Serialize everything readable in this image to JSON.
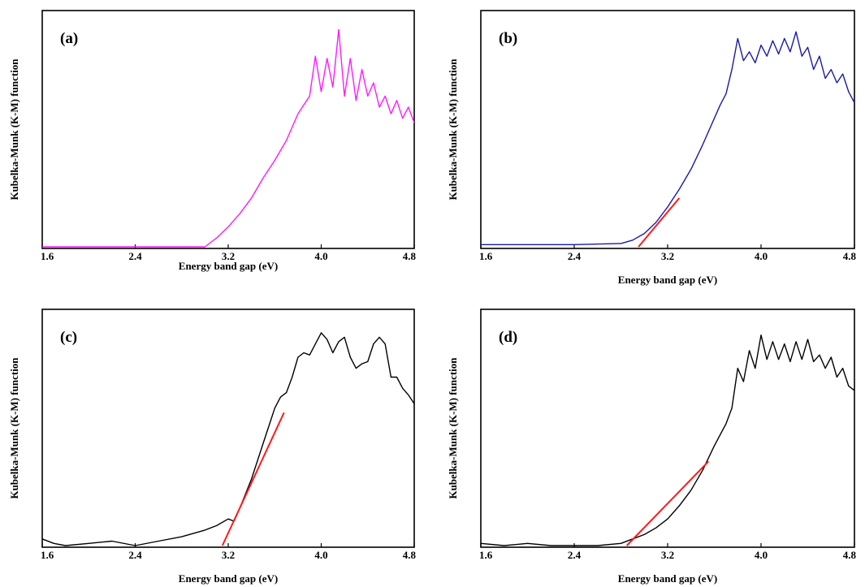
{
  "chart_data": [
    {
      "type": "line",
      "panel_label": "(a)",
      "xlabel": "Energy band gap (eV)",
      "ylabel": "Kubelka-Munk (K-M) function",
      "xlim": [
        1.6,
        4.8
      ],
      "ylim": [
        0,
        1
      ],
      "xticks": [
        "1.6",
        "2.4",
        "3.2",
        "4.0",
        "4.8"
      ],
      "series": [
        {
          "color": "#ff1aff",
          "x": [
            1.6,
            2.0,
            2.4,
            2.8,
            3.0,
            3.05,
            3.1,
            3.2,
            3.3,
            3.4,
            3.5,
            3.6,
            3.7,
            3.8,
            3.85,
            3.9,
            3.95,
            4.0,
            4.05,
            4.1,
            4.15,
            4.2,
            4.25,
            4.3,
            4.35,
            4.4,
            4.45,
            4.5,
            4.55,
            4.6,
            4.65,
            4.7,
            4.75,
            4.8
          ],
          "y": [
            0.0,
            0.0,
            0.0,
            0.0,
            0.0,
            0.02,
            0.04,
            0.09,
            0.15,
            0.22,
            0.31,
            0.39,
            0.48,
            0.6,
            0.64,
            0.68,
            0.86,
            0.7,
            0.85,
            0.72,
            0.98,
            0.68,
            0.85,
            0.66,
            0.8,
            0.68,
            0.74,
            0.63,
            0.68,
            0.6,
            0.66,
            0.58,
            0.63,
            0.56
          ]
        }
      ]
    },
    {
      "type": "line",
      "panel_label": "(b)",
      "xlabel": "Energy band gap (eV)",
      "ylabel": "Kubelka-Munk (K-M) function",
      "xlim": [
        1.6,
        4.8
      ],
      "ylim": [
        0,
        1
      ],
      "xticks": [
        "1.6",
        "2.4",
        "3.2",
        "4.0",
        "4.8"
      ],
      "series": [
        {
          "color": "#1a1aa8",
          "x": [
            1.6,
            2.0,
            2.4,
            2.8,
            2.9,
            3.0,
            3.1,
            3.2,
            3.3,
            3.4,
            3.5,
            3.6,
            3.65,
            3.7,
            3.75,
            3.8,
            3.85,
            3.9,
            3.95,
            4.0,
            4.05,
            4.1,
            4.15,
            4.2,
            4.25,
            4.3,
            4.35,
            4.4,
            4.45,
            4.5,
            4.55,
            4.6,
            4.65,
            4.7,
            4.75,
            4.8
          ],
          "y": [
            0.01,
            0.01,
            0.01,
            0.015,
            0.03,
            0.06,
            0.11,
            0.18,
            0.26,
            0.35,
            0.46,
            0.58,
            0.64,
            0.69,
            0.8,
            0.94,
            0.84,
            0.88,
            0.83,
            0.91,
            0.86,
            0.93,
            0.87,
            0.94,
            0.88,
            0.97,
            0.86,
            0.9,
            0.8,
            0.86,
            0.76,
            0.8,
            0.74,
            0.78,
            0.7,
            0.65
          ]
        },
        {
          "color": "#ff1a1a",
          "x": [
            2.95,
            3.3
          ],
          "y": [
            0.0,
            0.22
          ]
        }
      ]
    },
    {
      "type": "line",
      "panel_label": "(c)",
      "xlabel": "Energy band gap (eV)",
      "ylabel": "Kubelka-Munk (K-M) function",
      "xlim": [
        1.6,
        4.8
      ],
      "ylim": [
        0,
        1
      ],
      "xticks": [
        "1.6",
        "2.4",
        "3.2",
        "4.0",
        "4.8"
      ],
      "series": [
        {
          "color": "#000000",
          "x": [
            1.6,
            1.7,
            1.8,
            2.0,
            2.2,
            2.4,
            2.6,
            2.8,
            3.0,
            3.1,
            3.2,
            3.25,
            3.3,
            3.4,
            3.5,
            3.6,
            3.65,
            3.7,
            3.75,
            3.8,
            3.85,
            3.9,
            4.0,
            4.05,
            4.1,
            4.15,
            4.2,
            4.25,
            4.3,
            4.35,
            4.4,
            4.45,
            4.5,
            4.55,
            4.6,
            4.65,
            4.7,
            4.75,
            4.8
          ],
          "y": [
            0.03,
            0.01,
            0.0,
            0.01,
            0.02,
            0.0,
            0.02,
            0.04,
            0.07,
            0.09,
            0.12,
            0.11,
            0.17,
            0.3,
            0.46,
            0.62,
            0.67,
            0.69,
            0.76,
            0.85,
            0.87,
            0.86,
            0.96,
            0.93,
            0.87,
            0.92,
            0.94,
            0.85,
            0.8,
            0.82,
            0.83,
            0.91,
            0.94,
            0.91,
            0.76,
            0.76,
            0.71,
            0.68,
            0.64
          ]
        },
        {
          "color": "#ff1a1a",
          "x": [
            3.15,
            3.68
          ],
          "y": [
            0.0,
            0.6
          ]
        }
      ]
    },
    {
      "type": "line",
      "panel_label": "(d)",
      "xlabel": "Energy band gap (eV)",
      "ylabel": "Kubelka-Munk (K-M) function",
      "xlim": [
        1.6,
        4.8
      ],
      "ylim": [
        0,
        1
      ],
      "xticks": [
        "1.6",
        "2.4",
        "3.2",
        "4.0",
        "4.8"
      ],
      "series": [
        {
          "color": "#000000",
          "x": [
            1.6,
            1.8,
            2.0,
            2.2,
            2.4,
            2.6,
            2.8,
            2.9,
            3.0,
            3.1,
            3.2,
            3.3,
            3.4,
            3.5,
            3.6,
            3.7,
            3.75,
            3.8,
            3.85,
            3.9,
            3.95,
            4.0,
            4.05,
            4.1,
            4.15,
            4.2,
            4.25,
            4.3,
            4.35,
            4.4,
            4.45,
            4.5,
            4.55,
            4.6,
            4.65,
            4.7,
            4.75,
            4.8
          ],
          "y": [
            0.01,
            0.0,
            0.01,
            0.0,
            0.0,
            0.0,
            0.01,
            0.03,
            0.05,
            0.08,
            0.12,
            0.18,
            0.25,
            0.34,
            0.45,
            0.55,
            0.62,
            0.8,
            0.74,
            0.88,
            0.8,
            0.95,
            0.84,
            0.92,
            0.84,
            0.91,
            0.83,
            0.92,
            0.84,
            0.93,
            0.83,
            0.86,
            0.8,
            0.85,
            0.76,
            0.8,
            0.72,
            0.7
          ]
        },
        {
          "color": "#ff1a1a",
          "x": [
            2.85,
            3.55
          ],
          "y": [
            0.0,
            0.38
          ]
        }
      ]
    }
  ]
}
